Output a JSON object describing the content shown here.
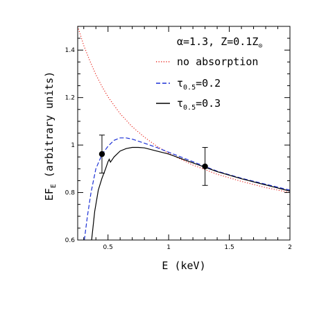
{
  "chart_data": {
    "type": "line",
    "title": "",
    "xlabel": "E (keV)",
    "ylabel": "EF_E (arbitrary units)",
    "xlim": [
      0.25,
      2.0
    ],
    "ylim": [
      0.6,
      1.5
    ],
    "x_ticks": [
      0.5,
      1,
      1.5,
      2
    ],
    "x_tick_labels": [
      "0.5",
      "1",
      "1.5",
      "2"
    ],
    "y_ticks": [
      0.6,
      0.8,
      1.0,
      1.2,
      1.4
    ],
    "y_tick_labels": [
      "0.6",
      "0.8",
      "1",
      "1.2",
      "1.4"
    ],
    "legend": {
      "header": "α=1.3, Z=0.1Z",
      "placement": "top-right",
      "entries": [
        {
          "label": "no absorption"
        },
        {
          "label": "τ0.5=0.2"
        },
        {
          "label": "τ0.5=0.3"
        }
      ]
    },
    "series": [
      {
        "name": "no absorption",
        "color": "#e8231b",
        "style": "dotted",
        "x": [
          0.25,
          0.3,
          0.35,
          0.4,
          0.45,
          0.5,
          0.6,
          0.7,
          0.8,
          0.9,
          1.0,
          1.2,
          1.4,
          1.6,
          1.8,
          2.0
        ],
        "y": [
          1.5,
          1.42,
          1.355,
          1.297,
          1.247,
          1.203,
          1.132,
          1.077,
          1.033,
          0.996,
          0.965,
          0.916,
          0.877,
          0.847,
          0.821,
          0.8
        ]
      },
      {
        "name": "τ0.5=0.2",
        "color": "#1a2fd6",
        "style": "dashed",
        "x": [
          0.305,
          0.33,
          0.36,
          0.4,
          0.45,
          0.5,
          0.55,
          0.6,
          0.65,
          0.7,
          0.8,
          0.9,
          1.0,
          1.2,
          1.4,
          1.6,
          1.8,
          2.0
        ],
        "y": [
          0.6,
          0.7,
          0.8,
          0.9,
          0.96,
          0.995,
          1.02,
          1.03,
          1.03,
          1.025,
          1.008,
          0.99,
          0.97,
          0.93,
          0.89,
          0.86,
          0.835,
          0.81
        ]
      },
      {
        "name": "τ0.5=0.3",
        "color": "#000000",
        "style": "solid",
        "x": [
          0.365,
          0.39,
          0.42,
          0.45,
          0.48,
          0.5,
          0.51,
          0.52,
          0.55,
          0.6,
          0.65,
          0.7,
          0.75,
          0.8,
          0.9,
          1.0,
          1.2,
          1.4,
          1.6,
          1.8,
          2.0
        ],
        "y": [
          0.6,
          0.72,
          0.81,
          0.86,
          0.9,
          0.93,
          0.94,
          0.928,
          0.95,
          0.975,
          0.985,
          0.99,
          0.99,
          0.988,
          0.975,
          0.962,
          0.925,
          0.888,
          0.858,
          0.832,
          0.806
        ]
      }
    ],
    "data_points": [
      {
        "x": 0.45,
        "y": 0.962,
        "y_low": 0.882,
        "y_high": 1.042
      },
      {
        "x": 1.3,
        "y": 0.91,
        "y_low": 0.83,
        "y_high": 0.99
      }
    ]
  }
}
